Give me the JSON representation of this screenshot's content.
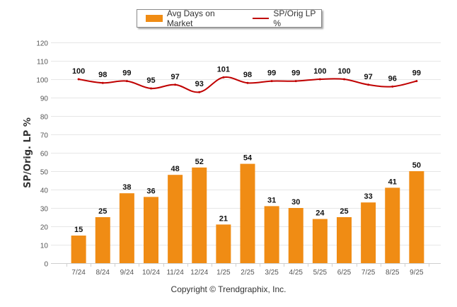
{
  "chart_data": {
    "type": "bar",
    "title": "",
    "ylabel": "SP/Orig. LP %",
    "xlabel": "",
    "ylim": [
      0,
      120
    ],
    "yticks": [
      0,
      10,
      20,
      30,
      40,
      50,
      60,
      70,
      80,
      90,
      100,
      110,
      120
    ],
    "grid": true,
    "legend_position": "top-center",
    "categories": [
      "7/24",
      "8/24",
      "9/24",
      "10/24",
      "11/24",
      "12/24",
      "1/25",
      "2/25",
      "3/25",
      "4/25",
      "5/25",
      "6/25",
      "7/25",
      "8/25",
      "9/25"
    ],
    "series": [
      {
        "name": "Avg Days on Market",
        "type": "bar",
        "color": "#f08c14",
        "values": [
          15,
          25,
          38,
          36,
          48,
          52,
          21,
          54,
          31,
          30,
          24,
          25,
          33,
          41,
          50
        ]
      },
      {
        "name": "SP/Orig LP %",
        "type": "line",
        "color": "#c00000",
        "values": [
          100,
          98,
          99,
          95,
          97,
          93,
          101,
          98,
          99,
          99,
          100,
          100,
          97,
          96,
          99
        ]
      }
    ]
  },
  "legend": {
    "items": [
      {
        "label": "Avg Days on Market",
        "color": "#f08c14"
      },
      {
        "label": "SP/Orig LP %",
        "color": "#c00000"
      }
    ]
  },
  "footer": {
    "copyright": "Copyright © Trendgraphix, Inc."
  }
}
